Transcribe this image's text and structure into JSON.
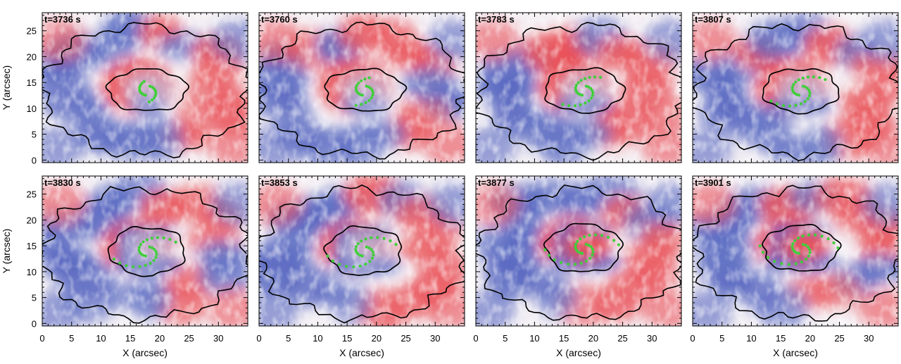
{
  "figure": {
    "xlabel": "X (arcsec)",
    "ylabel": "Y (arcsec)",
    "x_ticks": [
      "0",
      "5",
      "10",
      "15",
      "20",
      "25",
      "30"
    ],
    "y_ticks": [
      "0",
      "5",
      "10",
      "15",
      "20",
      "25"
    ],
    "xlim": [
      0,
      35
    ],
    "ylim": [
      -0.5,
      28.5
    ],
    "colors": {
      "positive": "#e8333a",
      "negative": "#3b4fb8",
      "neutral": "#f4f0f4",
      "contour": "#000000",
      "markers": "#3fcf3a"
    },
    "panels": [
      {
        "label": "t=3736 s"
      },
      {
        "label": "t=3760 s"
      },
      {
        "label": "t=3783 s"
      },
      {
        "label": "t=3807 s"
      },
      {
        "label": "t=3830 s"
      },
      {
        "label": "t=3853 s"
      },
      {
        "label": "t=3877 s"
      },
      {
        "label": "t=3901 s"
      }
    ]
  }
}
